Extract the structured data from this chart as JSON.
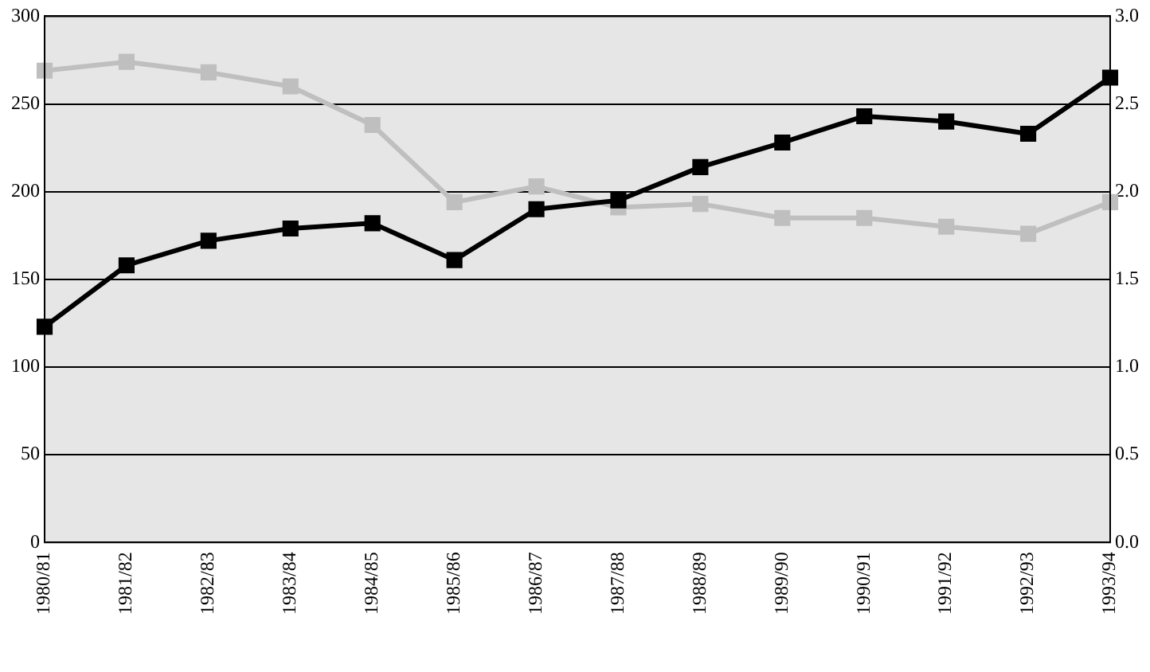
{
  "chart_data": {
    "type": "line",
    "categories": [
      "1980/81",
      "1981/82",
      "1982/83",
      "1983/84",
      "1984/85",
      "1985/86",
      "1986/87",
      "1987/88",
      "1988/89",
      "1989/90",
      "1990/91",
      "1991/92",
      "1992/93",
      "1993/94"
    ],
    "series": [
      {
        "color": "#bfbfbf",
        "axis": "y2",
        "values": [
          2.69,
          2.74,
          2.68,
          2.6,
          2.38,
          1.94,
          2.03,
          1.91,
          1.93,
          1.85,
          1.85,
          1.8,
          1.76,
          1.94
        ]
      },
      {
        "color": "#000000",
        "values": [
          123,
          158,
          172,
          179,
          182,
          161,
          190,
          195,
          214,
          228,
          243,
          240,
          233,
          265
        ]
      }
    ],
    "ylim": [
      0,
      300
    ],
    "yticks": [
      0,
      50,
      100,
      150,
      200,
      250,
      300
    ],
    "y2lim": [
      0,
      3
    ],
    "y2ticks": [
      {
        "value": 0,
        "label": "0.0"
      },
      {
        "value": 0.5,
        "label": "0.5"
      },
      {
        "value": 1,
        "label": "1.0"
      },
      {
        "value": 1.5,
        "label": "1.5"
      },
      {
        "value": 2,
        "label": "2.0"
      },
      {
        "value": 2.5,
        "label": "2.5"
      },
      {
        "value": 3,
        "label": "3.0"
      }
    ],
    "grid": "y",
    "legend": false,
    "marker": "square",
    "line_style": "solid"
  }
}
